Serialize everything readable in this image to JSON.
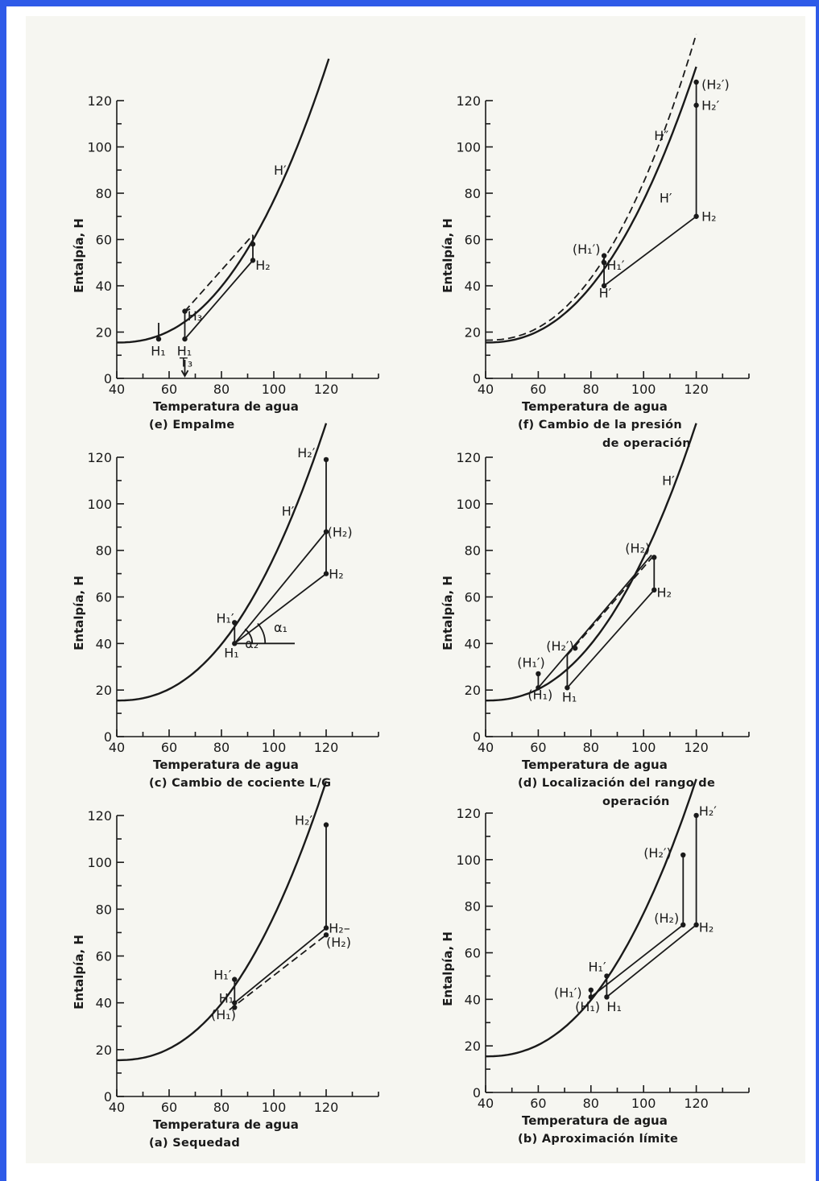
{
  "chart_data": [
    {
      "id": "e",
      "type": "line",
      "xlabel": "Temperatura de agua",
      "ylabel": "Entalpía, H",
      "caption": [
        "(e)  Empalme"
      ],
      "xlim": [
        40,
        140
      ],
      "ylim": [
        0,
        120
      ],
      "xticks": [
        40,
        60,
        80,
        100,
        120
      ],
      "yticks": [
        0,
        20,
        40,
        60,
        80,
        100,
        120
      ],
      "series": [
        {
          "style": "curve",
          "curve": "saturation",
          "x": [
            40,
            121
          ],
          "label": "H′",
          "label_at": [
            100,
            88
          ]
        },
        {
          "style": "solid",
          "points": [
            [
              56,
              17
            ],
            [
              56,
              24
            ]
          ]
        },
        {
          "style": "solid",
          "points": [
            [
              66,
              17
            ],
            [
              66,
              29
            ]
          ]
        },
        {
          "style": "solid",
          "points": [
            [
              66,
              17
            ],
            [
              92,
              51
            ]
          ]
        },
        {
          "style": "solid",
          "points": [
            [
              92,
              51
            ],
            [
              92,
              62
            ]
          ]
        },
        {
          "style": "dashed",
          "points": [
            [
              66,
              29
            ],
            [
              92,
              62
            ]
          ]
        },
        {
          "style": "solid",
          "points": [
            [
              66,
              29
            ],
            [
              68,
              30
            ]
          ]
        },
        {
          "style": "arrow",
          "points": [
            [
              66,
              8
            ],
            [
              66,
              1
            ]
          ]
        }
      ],
      "points": [
        [
          56,
          17
        ],
        [
          66,
          17
        ],
        [
          66,
          29
        ],
        [
          92,
          51
        ],
        [
          92,
          58
        ]
      ],
      "annotations": [
        {
          "text": "H₁",
          "at": [
            53,
            10
          ]
        },
        {
          "text": "H₁",
          "at": [
            63,
            10
          ]
        },
        {
          "text": "H₃",
          "at": [
            67,
            25
          ]
        },
        {
          "text": "H₂",
          "at": [
            93,
            47
          ]
        },
        {
          "text": "T₃",
          "at": [
            64,
            5
          ]
        }
      ]
    },
    {
      "id": "f",
      "type": "line",
      "xlabel": "Temperatura de agua",
      "ylabel": "Entalpía, H",
      "caption": [
        "(f)  Cambio  de  la  presión",
        "de  operación"
      ],
      "xlim": [
        40,
        140
      ],
      "ylim": [
        0,
        120
      ],
      "xticks": [
        40,
        60,
        80,
        100,
        120
      ],
      "yticks": [
        0,
        20,
        40,
        60,
        80,
        100,
        120
      ],
      "series": [
        {
          "style": "curve",
          "curve": "saturation",
          "x": [
            40,
            120
          ],
          "label": "H′",
          "label_at": [
            106,
            76
          ]
        },
        {
          "style": "dashed-curve",
          "curve": "high",
          "x": [
            40,
            120
          ],
          "label": "H″",
          "label_at": [
            104,
            103
          ]
        },
        {
          "style": "solid",
          "points": [
            [
              85,
              40
            ],
            [
              120,
              70
            ]
          ]
        },
        {
          "style": "solid",
          "points": [
            [
              85,
              40
            ],
            [
              85,
              53
            ]
          ]
        },
        {
          "style": "solid",
          "points": [
            [
              120,
              70
            ],
            [
              120,
              128
            ]
          ]
        }
      ],
      "points": [
        [
          85,
          40
        ],
        [
          85,
          50
        ],
        [
          85,
          53
        ],
        [
          120,
          70
        ],
        [
          120,
          118
        ],
        [
          120,
          128
        ]
      ],
      "annotations": [
        {
          "text": "(H₁′)",
          "at": [
            73,
            54
          ]
        },
        {
          "text": "H₁′",
          "at": [
            86,
            47
          ]
        },
        {
          "text": "H′",
          "at": [
            83,
            35
          ]
        },
        {
          "text": "H₂",
          "at": [
            122,
            68
          ]
        },
        {
          "text": "H₂′",
          "at": [
            122,
            116
          ]
        },
        {
          "text": "(H₂′)",
          "at": [
            122,
            125
          ]
        }
      ]
    },
    {
      "id": "c",
      "type": "line",
      "xlabel": "Temperatura de agua",
      "ylabel": "Entalpía, H",
      "caption": [
        "(c)  Cambio  de  cociente  L/G"
      ],
      "xlim": [
        40,
        140
      ],
      "ylim": [
        0,
        120
      ],
      "xticks": [
        40,
        60,
        80,
        100,
        120
      ],
      "yticks": [
        0,
        20,
        40,
        60,
        80,
        100,
        120
      ],
      "series": [
        {
          "style": "curve",
          "curve": "saturation",
          "x": [
            40,
            120
          ],
          "label": "H′",
          "label_at": [
            103,
            95
          ]
        },
        {
          "style": "solid",
          "points": [
            [
              85,
              40
            ],
            [
              120,
              70
            ]
          ]
        },
        {
          "style": "solid",
          "points": [
            [
              85,
              40
            ],
            [
              120,
              88
            ]
          ]
        },
        {
          "style": "solid",
          "points": [
            [
              85,
              40
            ],
            [
              85,
              49
            ]
          ]
        },
        {
          "style": "solid",
          "points": [
            [
              120,
              70
            ],
            [
              120,
              119
            ]
          ]
        },
        {
          "style": "solid",
          "points": [
            [
              85,
              40
            ],
            [
              108,
              40
            ]
          ]
        },
        {
          "style": "arc",
          "center": [
            85,
            40
          ],
          "r": 22,
          "from": 0,
          "to": 54
        },
        {
          "style": "arc",
          "center": [
            85,
            40
          ],
          "r": 38,
          "from": 0,
          "to": 41
        }
      ],
      "points": [
        [
          85,
          40
        ],
        [
          85,
          49
        ],
        [
          120,
          70
        ],
        [
          120,
          88
        ],
        [
          120,
          119
        ]
      ],
      "annotations": [
        {
          "text": "H₂′",
          "at": [
            109,
            120
          ]
        },
        {
          "text": "(H₂)",
          "at": [
            120.5,
            86
          ]
        },
        {
          "text": "H₂",
          "at": [
            121,
            68
          ]
        },
        {
          "text": "H₁′",
          "at": [
            78,
            49
          ]
        },
        {
          "text": "H₁",
          "at": [
            81,
            34
          ]
        },
        {
          "text": "α₂",
          "at": [
            89,
            38
          ]
        },
        {
          "text": "α₁",
          "at": [
            100,
            45
          ]
        }
      ]
    },
    {
      "id": "d",
      "type": "line",
      "xlabel": "Temperatura de agua",
      "ylabel": "Entalpía, H",
      "caption": [
        "(d)  Localización  del  rango  de",
        "operación"
      ],
      "xlim": [
        40,
        140
      ],
      "ylim": [
        0,
        120
      ],
      "xticks": [
        40,
        60,
        80,
        100,
        120
      ],
      "yticks": [
        0,
        20,
        40,
        60,
        80,
        100,
        120
      ],
      "series": [
        {
          "style": "curve",
          "curve": "saturation",
          "x": [
            40,
            120
          ],
          "label": "H′",
          "label_at": [
            107,
            108
          ]
        },
        {
          "style": "solid",
          "points": [
            [
              60,
              21
            ],
            [
              103,
              78
            ]
          ]
        },
        {
          "style": "solid",
          "points": [
            [
              60,
              21
            ],
            [
              60,
              26
            ]
          ]
        },
        {
          "style": "solid",
          "points": [
            [
              71,
              21
            ],
            [
              104,
              63
            ]
          ]
        },
        {
          "style": "solid",
          "points": [
            [
              71,
              21
            ],
            [
              71,
              35
            ]
          ]
        },
        {
          "style": "solid",
          "points": [
            [
              104,
              63
            ],
            [
              104,
              78
            ]
          ]
        },
        {
          "style": "dashed",
          "points": [
            [
              71,
              35
            ],
            [
              104,
              78
            ]
          ]
        }
      ],
      "points": [
        [
          60,
          21
        ],
        [
          60,
          27
        ],
        [
          71,
          21
        ],
        [
          74,
          38
        ],
        [
          104,
          63
        ],
        [
          104,
          77
        ]
      ],
      "annotations": [
        {
          "text": "(H₁′)",
          "at": [
            52,
            30
          ]
        },
        {
          "text": "(H₁)",
          "at": [
            56,
            16
          ]
        },
        {
          "text": "H₁",
          "at": [
            69,
            15
          ]
        },
        {
          "text": "(H₂′)",
          "at": [
            63,
            37
          ]
        },
        {
          "text": "(H₂)",
          "at": [
            93,
            79
          ]
        },
        {
          "text": "H₂",
          "at": [
            105,
            60
          ]
        }
      ]
    },
    {
      "id": "a",
      "type": "line",
      "xlabel": "Temperatura de agua",
      "ylabel": "Entalpía, H",
      "caption": [
        "(a)  Sequedad"
      ],
      "xlim": [
        40,
        140
      ],
      "ylim": [
        0,
        120
      ],
      "xticks": [
        40,
        60,
        80,
        100,
        120
      ],
      "yticks": [
        0,
        20,
        40,
        60,
        80,
        100,
        120
      ],
      "series": [
        {
          "style": "curve",
          "curve": "saturation",
          "x": [
            40,
            120
          ]
        },
        {
          "style": "solid",
          "points": [
            [
              85,
              40
            ],
            [
              120,
              72
            ]
          ]
        },
        {
          "style": "dashed",
          "points": [
            [
              83,
              37
            ],
            [
              120,
              69
            ]
          ]
        },
        {
          "style": "solid",
          "points": [
            [
              85,
              40
            ],
            [
              85,
              50
            ]
          ]
        },
        {
          "style": "solid",
          "points": [
            [
              120,
              72
            ],
            [
              120,
              116
            ]
          ]
        }
      ],
      "points": [
        [
          85,
          40
        ],
        [
          85,
          50
        ],
        [
          85,
          38
        ],
        [
          120,
          72
        ],
        [
          120,
          69
        ],
        [
          120,
          116
        ]
      ],
      "annotations": [
        {
          "text": "H₂′",
          "at": [
            108,
            116
          ]
        },
        {
          "text": "H₂–",
          "at": [
            121,
            70
          ]
        },
        {
          "text": "(H₂)",
          "at": [
            120,
            64
          ]
        },
        {
          "text": "H₁′",
          "at": [
            77,
            50
          ]
        },
        {
          "text": "H₁",
          "at": [
            79,
            40
          ]
        },
        {
          "text": "(H₁)",
          "at": [
            76,
            33
          ]
        }
      ]
    },
    {
      "id": "b",
      "type": "line",
      "xlabel": "Temperatura de agua",
      "ylabel": "Entalpía, H",
      "caption": [
        "(b)  Aproximación  límite"
      ],
      "xlim": [
        40,
        140
      ],
      "ylim": [
        0,
        120
      ],
      "xticks": [
        40,
        60,
        80,
        100,
        120
      ],
      "yticks": [
        0,
        20,
        40,
        60,
        80,
        100,
        120
      ],
      "series": [
        {
          "style": "curve",
          "curve": "saturation",
          "x": [
            40,
            120
          ]
        },
        {
          "style": "solid",
          "points": [
            [
              80,
              41
            ],
            [
              115,
              72
            ]
          ]
        },
        {
          "style": "solid",
          "points": [
            [
              80,
              41
            ],
            [
              80,
              44
            ]
          ]
        },
        {
          "style": "solid",
          "points": [
            [
              86,
              41
            ],
            [
              120,
              72
            ]
          ]
        },
        {
          "style": "solid",
          "points": [
            [
              86,
              41
            ],
            [
              86,
              50
            ]
          ]
        },
        {
          "style": "solid",
          "points": [
            [
              115,
              72
            ],
            [
              115,
              102
            ]
          ]
        },
        {
          "style": "solid",
          "points": [
            [
              120,
              72
            ],
            [
              120,
              119
            ]
          ]
        }
      ],
      "points": [
        [
          80,
          41
        ],
        [
          80,
          44
        ],
        [
          86,
          41
        ],
        [
          86,
          50
        ],
        [
          115,
          72
        ],
        [
          115,
          102
        ],
        [
          120,
          72
        ],
        [
          120,
          119
        ]
      ],
      "annotations": [
        {
          "text": "(H₁′)",
          "at": [
            66,
            41
          ]
        },
        {
          "text": "(H₁)",
          "at": [
            74,
            35
          ]
        },
        {
          "text": "H₁",
          "at": [
            86,
            35
          ]
        },
        {
          "text": "H₁′",
          "at": [
            79,
            52
          ]
        },
        {
          "text": "(H₂′)",
          "at": [
            100,
            101
          ]
        },
        {
          "text": "(H₂)",
          "at": [
            104,
            73
          ]
        },
        {
          "text": "H₂",
          "at": [
            121,
            69
          ]
        },
        {
          "text": "H₂′",
          "at": [
            121,
            119
          ]
        }
      ]
    }
  ]
}
